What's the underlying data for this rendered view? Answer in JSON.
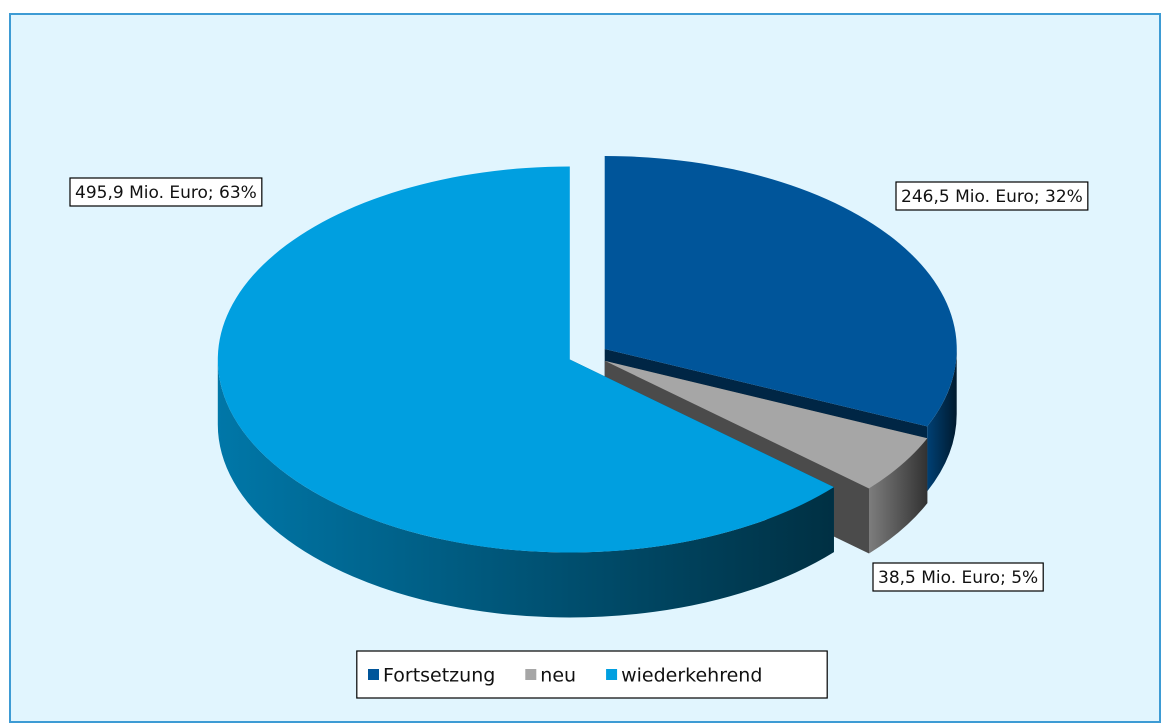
{
  "chart_data": {
    "type": "pie",
    "categories": [
      "Fortsetzung",
      "neu",
      "wiederkehrend"
    ],
    "values": [
      246.5,
      38.5,
      495.9
    ],
    "value_labels": [
      "246,5 Mio. Euro; 32%",
      "38,5 Mio. Euro; 5%",
      "495,9 Mio. Euro; 63%"
    ],
    "colors": [
      "#00559a",
      "#a6a6a6",
      "#009fe0"
    ],
    "legend": "bottom"
  }
}
